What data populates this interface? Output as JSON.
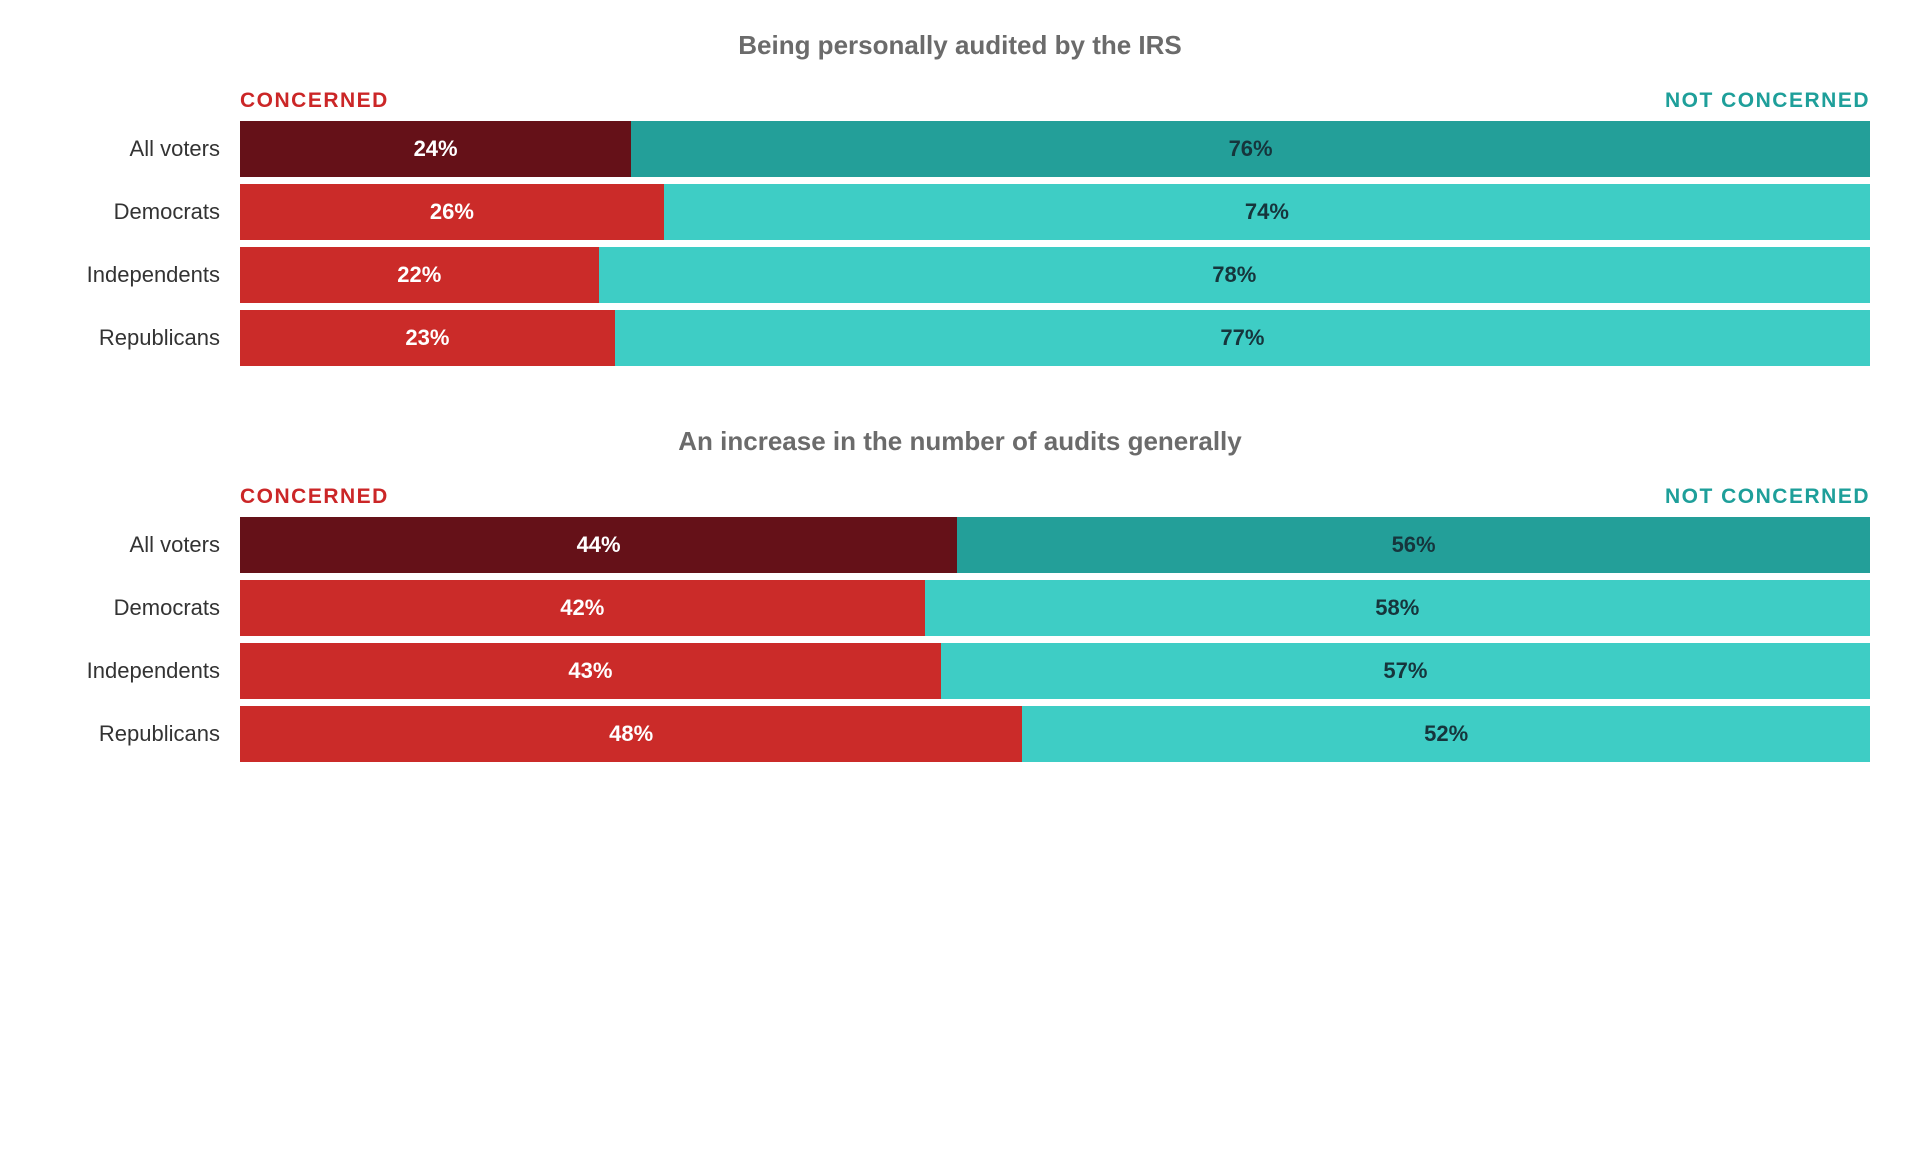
{
  "colors": {
    "title": "#6b6b6b",
    "row_label": "#333333",
    "legend_concerned": "#cb2627",
    "legend_not_concerned": "#1e9f9a",
    "bar_concerned_allvoters": "#651118",
    "bar_notconcerned_allvoters": "#239f99",
    "bar_concerned": "#cb2b29",
    "bar_notconcerned": "#3ecdc5",
    "text_on_concerned": "#ffffff",
    "text_on_notconcerned": "#16353c"
  },
  "legend": {
    "concerned": "CONCERNED",
    "not_concerned": "NOT CONCERNED"
  },
  "sections": [
    {
      "title": "Being personally audited by the IRS",
      "rows": [
        {
          "label": "All voters",
          "concerned": 24,
          "not_concerned": 76,
          "highlight": true
        },
        {
          "label": "Democrats",
          "concerned": 26,
          "not_concerned": 74,
          "highlight": false
        },
        {
          "label": "Independents",
          "concerned": 22,
          "not_concerned": 78,
          "highlight": false
        },
        {
          "label": "Republicans",
          "concerned": 23,
          "not_concerned": 77,
          "highlight": false
        }
      ]
    },
    {
      "title": "An increase in the number of audits generally",
      "rows": [
        {
          "label": "All voters",
          "concerned": 44,
          "not_concerned": 56,
          "highlight": true
        },
        {
          "label": "Democrats",
          "concerned": 42,
          "not_concerned": 58,
          "highlight": false
        },
        {
          "label": "Independents",
          "concerned": 43,
          "not_concerned": 57,
          "highlight": false
        },
        {
          "label": "Republicans",
          "concerned": 48,
          "not_concerned": 52,
          "highlight": false
        }
      ]
    }
  ]
}
